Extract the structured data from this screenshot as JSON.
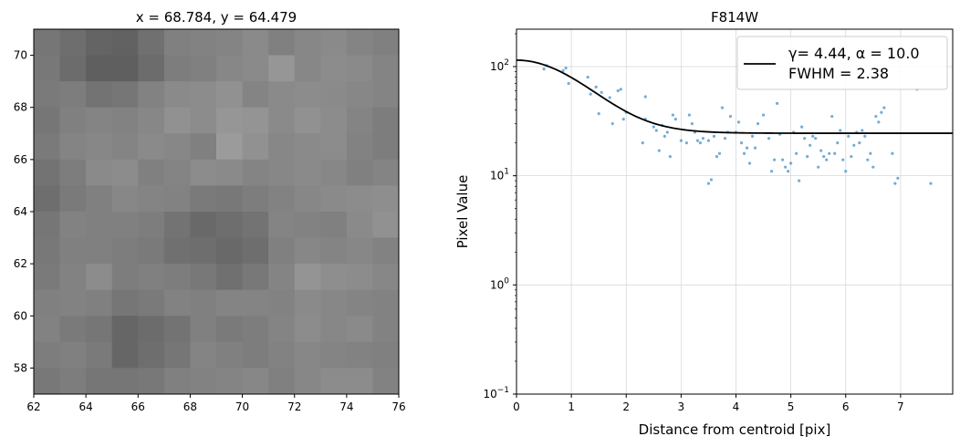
{
  "chart_data": [
    {
      "type": "heatmap",
      "title": "x = 68.784, y = 64.479",
      "xlim": [
        62,
        76
      ],
      "ylim": [
        57,
        71
      ],
      "x_ticks": [
        "62",
        "64",
        "66",
        "68",
        "70",
        "72",
        "74",
        "76"
      ],
      "y_ticks": [
        "58",
        "60",
        "62",
        "64",
        "66",
        "68",
        "70"
      ],
      "colormap": "gray",
      "cell_x_start": 62,
      "cell_y_start": 57,
      "rows": [
        [
          120,
          115,
          108,
          105,
          118,
          132,
          135,
          128,
          130,
          140,
          138,
          140,
          128,
          130
        ],
        [
          118,
          110,
          100,
          98,
          112,
          128,
          130,
          132,
          138,
          128,
          135,
          138,
          132,
          128
        ],
        [
          120,
          108,
          95,
          95,
          108,
          125,
          128,
          135,
          138,
          150,
          135,
          140,
          138,
          132
        ],
        [
          122,
          125,
          115,
          118,
          130,
          138,
          140,
          145,
          132,
          138,
          140,
          138,
          135,
          132
        ],
        [
          118,
          128,
          132,
          130,
          135,
          145,
          140,
          150,
          148,
          138,
          145,
          140,
          132,
          125
        ],
        [
          122,
          132,
          135,
          132,
          138,
          135,
          128,
          155,
          145,
          135,
          138,
          140,
          130,
          125
        ],
        [
          115,
          125,
          138,
          140,
          128,
          132,
          140,
          138,
          132,
          135,
          138,
          135,
          128,
          132
        ],
        [
          110,
          122,
          128,
          135,
          132,
          130,
          122,
          120,
          125,
          130,
          135,
          138,
          140,
          142
        ],
        [
          118,
          130,
          128,
          128,
          125,
          115,
          105,
          110,
          115,
          132,
          130,
          128,
          138,
          145
        ],
        [
          120,
          128,
          128,
          125,
          122,
          112,
          110,
          105,
          110,
          128,
          135,
          132,
          135,
          130
        ],
        [
          122,
          130,
          140,
          125,
          128,
          125,
          120,
          112,
          120,
          132,
          148,
          142,
          140,
          135
        ],
        [
          128,
          130,
          128,
          118,
          122,
          130,
          128,
          132,
          132,
          130,
          138,
          135,
          132,
          130
        ],
        [
          130,
          122,
          118,
          102,
          108,
          115,
          128,
          122,
          125,
          132,
          140,
          135,
          138,
          130
        ],
        [
          125,
          128,
          122,
          102,
          110,
          118,
          132,
          128,
          125,
          130,
          135,
          132,
          130,
          128
        ],
        [
          120,
          125,
          118,
          118,
          120,
          128,
          130,
          132,
          135,
          128,
          135,
          140,
          140,
          130
        ]
      ]
    },
    {
      "type": "scatter",
      "title": "F814W",
      "xlabel": "Distance from centroid [pix]",
      "ylabel": "Pixel Value",
      "xlim": [
        0,
        7.95
      ],
      "ylim": [
        0.1,
        220
      ],
      "yscale": "log",
      "x_ticks": [
        "0",
        "1",
        "2",
        "3",
        "4",
        "5",
        "6",
        "7"
      ],
      "y_ticks": [
        0.1,
        1,
        10,
        100
      ],
      "grid": true,
      "legend": {
        "placement": "top-right",
        "line1": "γ= 4.44, α = 10.0",
        "line2": "FWHM = 2.38"
      },
      "model": {
        "amplitude": 90,
        "gamma": 4.44,
        "alpha": 10.0,
        "background": 24.5,
        "color": "#000000"
      },
      "point_color": "#5b9fd0",
      "points": [
        [
          0.5,
          95
        ],
        [
          0.55,
          102
        ],
        [
          0.85,
          92
        ],
        [
          0.9,
          97
        ],
        [
          0.95,
          70
        ],
        [
          1.3,
          80
        ],
        [
          1.35,
          56
        ],
        [
          1.45,
          65
        ],
        [
          1.5,
          37
        ],
        [
          1.55,
          58
        ],
        [
          1.7,
          52
        ],
        [
          1.75,
          30
        ],
        [
          1.85,
          60
        ],
        [
          1.9,
          62
        ],
        [
          1.95,
          33
        ],
        [
          2.0,
          38
        ],
        [
          2.3,
          20
        ],
        [
          2.35,
          53
        ],
        [
          2.35,
          33
        ],
        [
          2.5,
          28
        ],
        [
          2.55,
          26
        ],
        [
          2.6,
          17
        ],
        [
          2.65,
          29
        ],
        [
          2.7,
          23
        ],
        [
          2.75,
          25
        ],
        [
          2.8,
          15
        ],
        [
          2.85,
          36
        ],
        [
          2.9,
          33
        ],
        [
          3.0,
          21
        ],
        [
          3.1,
          20
        ],
        [
          3.15,
          36
        ],
        [
          3.2,
          30
        ],
        [
          3.25,
          25
        ],
        [
          3.3,
          21
        ],
        [
          3.35,
          20
        ],
        [
          3.4,
          22
        ],
        [
          3.5,
          21
        ],
        [
          3.5,
          8.5
        ],
        [
          3.55,
          9.2
        ],
        [
          3.6,
          23
        ],
        [
          3.65,
          15
        ],
        [
          3.7,
          16
        ],
        [
          3.75,
          42
        ],
        [
          3.8,
          22
        ],
        [
          3.85,
          25
        ],
        [
          3.9,
          35
        ],
        [
          4.0,
          25
        ],
        [
          4.05,
          31
        ],
        [
          4.1,
          20
        ],
        [
          4.15,
          16
        ],
        [
          4.2,
          18
        ],
        [
          4.25,
          13
        ],
        [
          4.3,
          23
        ],
        [
          4.35,
          18
        ],
        [
          4.4,
          30
        ],
        [
          4.5,
          36
        ],
        [
          4.6,
          22
        ],
        [
          4.65,
          11
        ],
        [
          4.7,
          14
        ],
        [
          4.75,
          46
        ],
        [
          4.8,
          24
        ],
        [
          4.85,
          14
        ],
        [
          4.9,
          12
        ],
        [
          4.95,
          11
        ],
        [
          5.0,
          13
        ],
        [
          5.05,
          25
        ],
        [
          5.1,
          16
        ],
        [
          5.15,
          9
        ],
        [
          5.2,
          28
        ],
        [
          5.25,
          22
        ],
        [
          5.3,
          15
        ],
        [
          5.35,
          19
        ],
        [
          5.4,
          23
        ],
        [
          5.45,
          22
        ],
        [
          5.5,
          12
        ],
        [
          5.55,
          17
        ],
        [
          5.6,
          15
        ],
        [
          5.65,
          14
        ],
        [
          5.7,
          16
        ],
        [
          5.75,
          35
        ],
        [
          5.8,
          16
        ],
        [
          5.85,
          20
        ],
        [
          5.9,
          26
        ],
        [
          5.95,
          14
        ],
        [
          6.0,
          11
        ],
        [
          6.05,
          23
        ],
        [
          6.1,
          15
        ],
        [
          6.15,
          19
        ],
        [
          6.2,
          25
        ],
        [
          6.25,
          20
        ],
        [
          6.3,
          26
        ],
        [
          6.35,
          23
        ],
        [
          6.4,
          14
        ],
        [
          6.45,
          16
        ],
        [
          6.5,
          12
        ],
        [
          6.55,
          35
        ],
        [
          6.6,
          31
        ],
        [
          6.65,
          38
        ],
        [
          6.7,
          42
        ],
        [
          6.85,
          16
        ],
        [
          6.9,
          8.5
        ],
        [
          6.95,
          9.5
        ],
        [
          7.3,
          62
        ],
        [
          7.55,
          8.5
        ]
      ]
    }
  ]
}
